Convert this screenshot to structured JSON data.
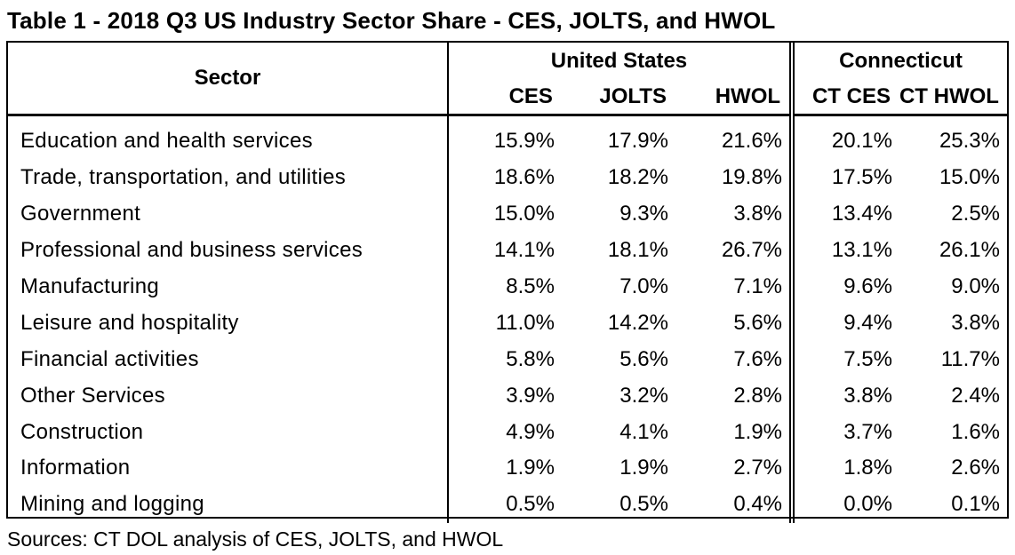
{
  "title": "Table 1 - 2018 Q3 US Industry Sector Share - CES, JOLTS, and HWOL",
  "headers": {
    "sector": "Sector",
    "group_us": "United States",
    "group_ct": "Connecticut",
    "columns": [
      "CES",
      "JOLTS",
      "HWOL",
      "CT CES",
      "CT HWOL"
    ]
  },
  "rows": [
    {
      "sector": "Education and health services",
      "ces": "15.9%",
      "jolts": "17.9%",
      "hwol": "21.6%",
      "ct_ces": "20.1%",
      "ct_hwol": "25.3%"
    },
    {
      "sector": "Trade, transportation, and utilities",
      "ces": "18.6%",
      "jolts": "18.2%",
      "hwol": "19.8%",
      "ct_ces": "17.5%",
      "ct_hwol": "15.0%"
    },
    {
      "sector": "Government",
      "ces": "15.0%",
      "jolts": "9.3%",
      "hwol": "3.8%",
      "ct_ces": "13.4%",
      "ct_hwol": "2.5%"
    },
    {
      "sector": "Professional and business services",
      "ces": "14.1%",
      "jolts": "18.1%",
      "hwol": "26.7%",
      "ct_ces": "13.1%",
      "ct_hwol": "26.1%"
    },
    {
      "sector": "Manufacturing",
      "ces": "8.5%",
      "jolts": "7.0%",
      "hwol": "7.1%",
      "ct_ces": "9.6%",
      "ct_hwol": "9.0%"
    },
    {
      "sector": "Leisure and hospitality",
      "ces": "11.0%",
      "jolts": "14.2%",
      "hwol": "5.6%",
      "ct_ces": "9.4%",
      "ct_hwol": "3.8%"
    },
    {
      "sector": "Financial activities",
      "ces": "5.8%",
      "jolts": "5.6%",
      "hwol": "7.6%",
      "ct_ces": "7.5%",
      "ct_hwol": "11.7%"
    },
    {
      "sector": "Other Services",
      "ces": "3.9%",
      "jolts": "3.2%",
      "hwol": "2.8%",
      "ct_ces": "3.8%",
      "ct_hwol": "2.4%"
    },
    {
      "sector": "Construction",
      "ces": "4.9%",
      "jolts": "4.1%",
      "hwol": "1.9%",
      "ct_ces": "3.7%",
      "ct_hwol": "1.6%"
    },
    {
      "sector": "Information",
      "ces": "1.9%",
      "jolts": "1.9%",
      "hwol": "2.7%",
      "ct_ces": "1.8%",
      "ct_hwol": "2.6%"
    },
    {
      "sector": "Mining and logging",
      "ces": "0.5%",
      "jolts": "0.5%",
      "hwol": "0.4%",
      "ct_ces": "0.0%",
      "ct_hwol": "0.1%"
    }
  ],
  "source": "Sources: CT DOL analysis of CES, JOLTS, and HWOL"
}
